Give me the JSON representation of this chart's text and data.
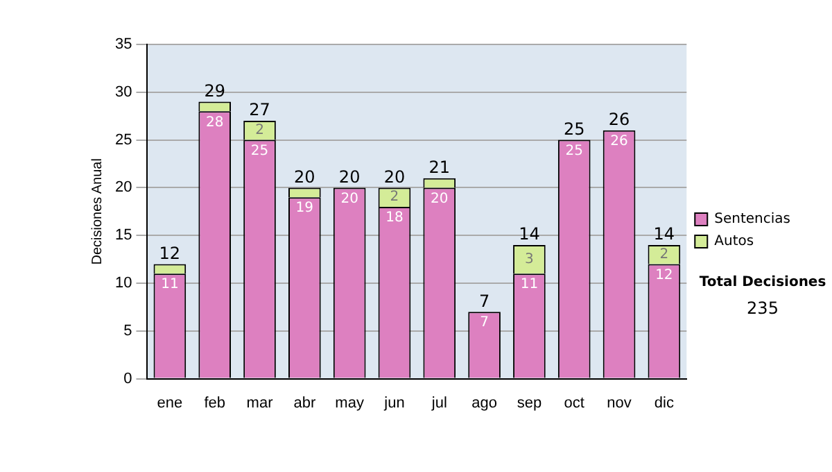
{
  "chart_data": {
    "type": "bar",
    "stacked": true,
    "ylabel": "Decisiones Anual",
    "categories": [
      "ene",
      "feb",
      "mar",
      "abr",
      "may",
      "jun",
      "jul",
      "ago",
      "sep",
      "oct",
      "nov",
      "dic"
    ],
    "series": [
      {
        "name": "Sentencias",
        "color": "#dd80c0",
        "values": [
          11,
          28,
          25,
          19,
          20,
          18,
          20,
          7,
          11,
          25,
          26,
          12
        ],
        "value_labels": [
          "11",
          "28",
          "25",
          "19",
          "20",
          "18",
          "20",
          "7",
          "11",
          "25",
          "26",
          "12"
        ]
      },
      {
        "name": "Autos",
        "color": "#d4ec98",
        "values": [
          1,
          1,
          2,
          1,
          0,
          2,
          1,
          0,
          3,
          0,
          0,
          2
        ],
        "value_labels": [
          null,
          null,
          "2",
          null,
          null,
          "2",
          null,
          null,
          "3",
          null,
          null,
          "2"
        ]
      }
    ],
    "totals": [
      "12",
      "29",
      "27",
      "20",
      "20",
      "20",
      "21",
      "7",
      "14",
      "25",
      "26",
      "14"
    ],
    "ylim": [
      0,
      35
    ],
    "yticks": [
      0,
      5,
      10,
      15,
      20,
      25,
      30,
      35
    ],
    "grid": "y",
    "legend": "right",
    "annotations": [
      "Total Decisiones",
      "235"
    ]
  }
}
